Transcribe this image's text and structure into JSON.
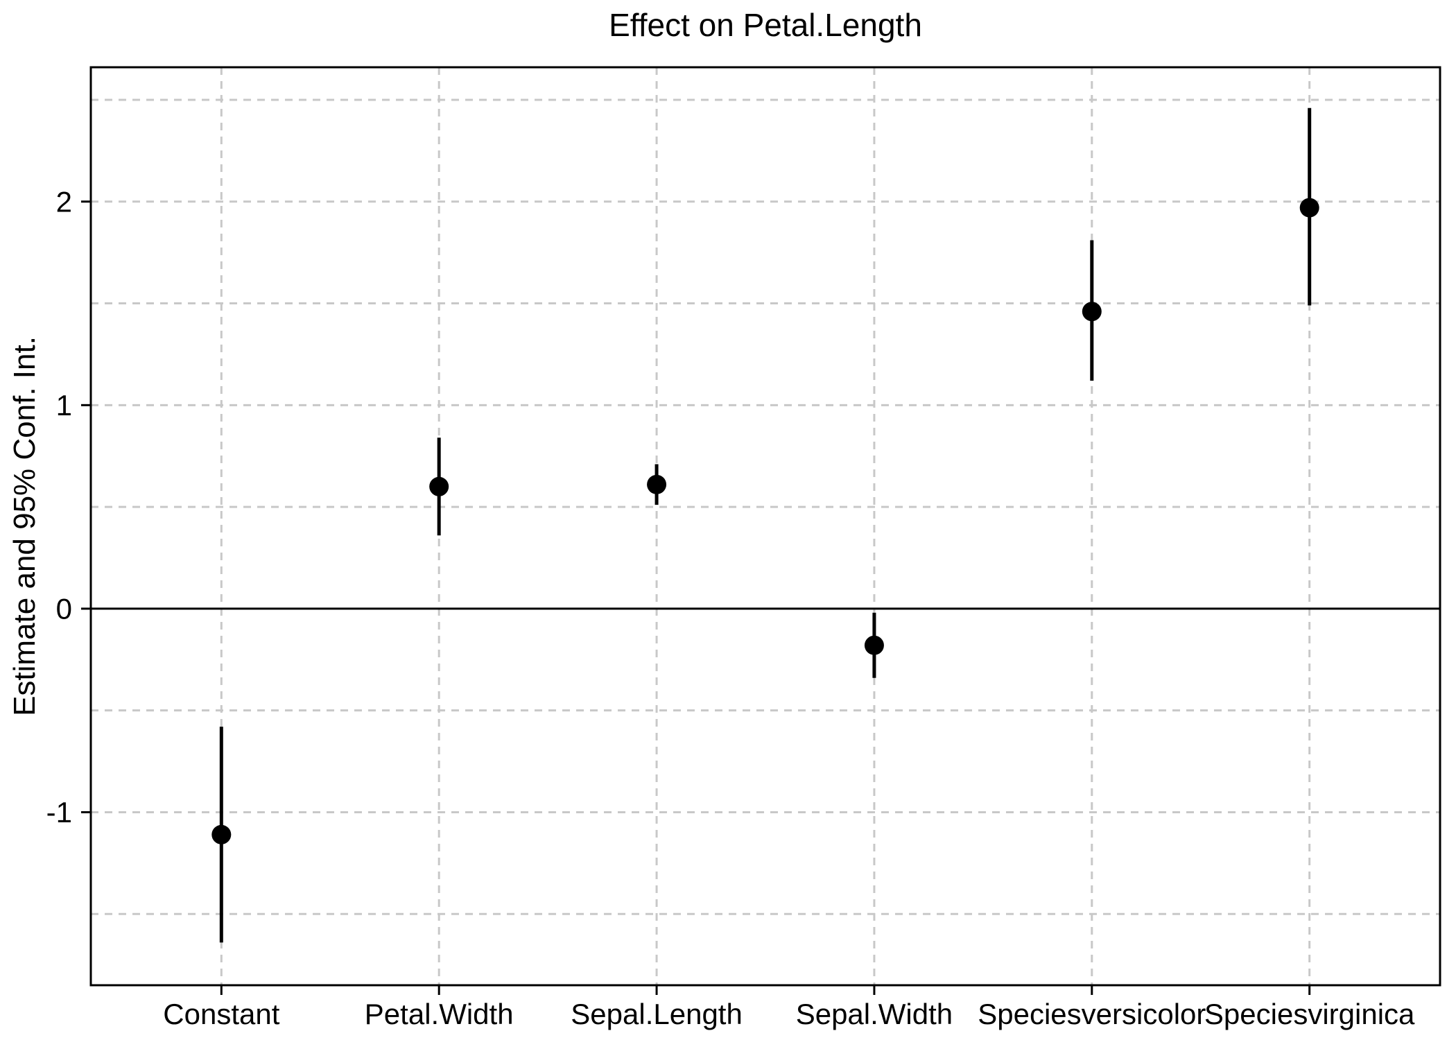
{
  "chart_data": {
    "type": "scatter",
    "subtype": "coefficient-pointrange-plot",
    "title": "Effect on Petal.Length",
    "xlabel": "",
    "ylabel": "Estimate and 95% Conf. Int.",
    "categories": [
      "Constant",
      "Petal.Width",
      "Sepal.Length",
      "Sepal.Width",
      "Speciesversicolor",
      "Speciesvirginica"
    ],
    "series": [
      {
        "name": "Estimate",
        "values": [
          -1.11,
          0.6,
          0.61,
          -0.18,
          1.46,
          1.97
        ]
      },
      {
        "name": "95% CI lower",
        "values": [
          -1.64,
          0.36,
          0.51,
          -0.34,
          1.12,
          1.49
        ]
      },
      {
        "name": "95% CI upper",
        "values": [
          -0.58,
          0.84,
          0.71,
          -0.02,
          1.81,
          2.46
        ]
      }
    ],
    "ylim": [
      -1.85,
      2.66
    ],
    "yticks": [
      2,
      1,
      0,
      -1
    ],
    "ytick_labels": [
      "2",
      "1",
      "0",
      "-1"
    ],
    "minor_grid_step": 0.5,
    "grid": "dashed, horizontal every 0.5 and vertical at each category",
    "zero_line": "solid horizontal line at y=0",
    "legend_position": "none"
  },
  "colors": {
    "background": "#ffffff",
    "text": "#000000",
    "grid": "#c8c8c8",
    "frame": "#000000",
    "zero_line": "#000000",
    "error_bar": "#000000",
    "point": "#000000",
    "tick": "#000000"
  }
}
